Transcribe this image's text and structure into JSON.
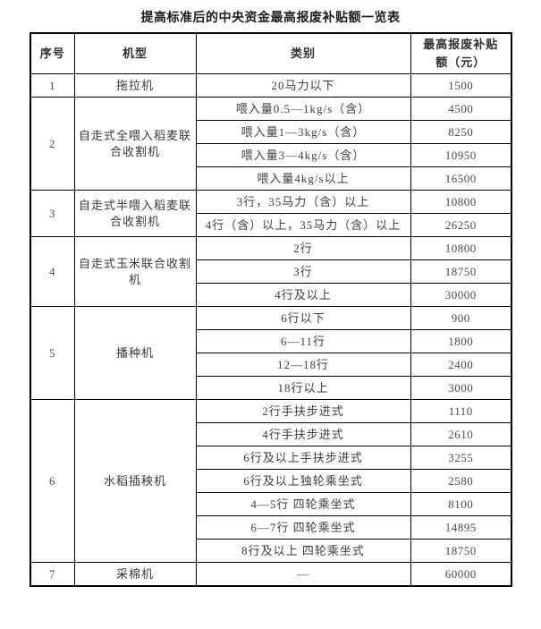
{
  "title": "提高标准后的中央资金最高报废补贴额一览表",
  "table": {
    "headers": [
      "序号",
      "机型",
      "类别",
      "最高报废补贴额（元）"
    ],
    "sections": [
      {
        "no": "1",
        "machine": "拖拉机",
        "rows": [
          {
            "category": "20马力以下",
            "amount": "1500"
          }
        ]
      },
      {
        "no": "2",
        "machine": "自走式全喂入稻麦联合收割机",
        "rows": [
          {
            "category": "喂入量0.5—1kg/s（含）",
            "amount": "4500"
          },
          {
            "category": "喂入量1—3kg/s（含）",
            "amount": "8250"
          },
          {
            "category": "喂入量3—4kg/s（含）",
            "amount": "10950"
          },
          {
            "category": "喂入量4kg/s以上",
            "amount": "16500"
          }
        ]
      },
      {
        "no": "3",
        "machine": "自走式半喂入稻麦联合收割机",
        "rows": [
          {
            "category": "3行，35马力（含）以上",
            "amount": "10800"
          },
          {
            "category": "4行（含）以上，35马力（含）以上",
            "amount": "26250"
          }
        ]
      },
      {
        "no": "4",
        "machine": "自走式玉米联合收割机",
        "rows": [
          {
            "category": "2行",
            "amount": "10800"
          },
          {
            "category": "3行",
            "amount": "18750"
          },
          {
            "category": "4行及以上",
            "amount": "30000"
          }
        ]
      },
      {
        "no": "5",
        "machine": "播种机",
        "rows": [
          {
            "category": "6行以下",
            "amount": "900"
          },
          {
            "category": "6—11行",
            "amount": "1800"
          },
          {
            "category": "12—18行",
            "amount": "2400"
          },
          {
            "category": "18行以上",
            "amount": "3000"
          }
        ]
      },
      {
        "no": "6",
        "machine": "水稻插秧机",
        "rows": [
          {
            "category": "2行手扶步进式",
            "amount": "1110"
          },
          {
            "category": "4行手扶步进式",
            "amount": "2610"
          },
          {
            "category": "6行及以上手扶步进式",
            "amount": "3255"
          },
          {
            "category": "6行及以上独轮乘坐式",
            "amount": "2580"
          },
          {
            "category": "4—5行 四轮乘坐式",
            "amount": "8100"
          },
          {
            "category": "6—7行 四轮乘坐式",
            "amount": "14895"
          },
          {
            "category": "8行及以上 四轮乘坐式",
            "amount": "18750"
          }
        ]
      },
      {
        "no": "7",
        "machine": "采棉机",
        "rows": [
          {
            "category": "—",
            "amount": "60000"
          }
        ]
      }
    ]
  }
}
